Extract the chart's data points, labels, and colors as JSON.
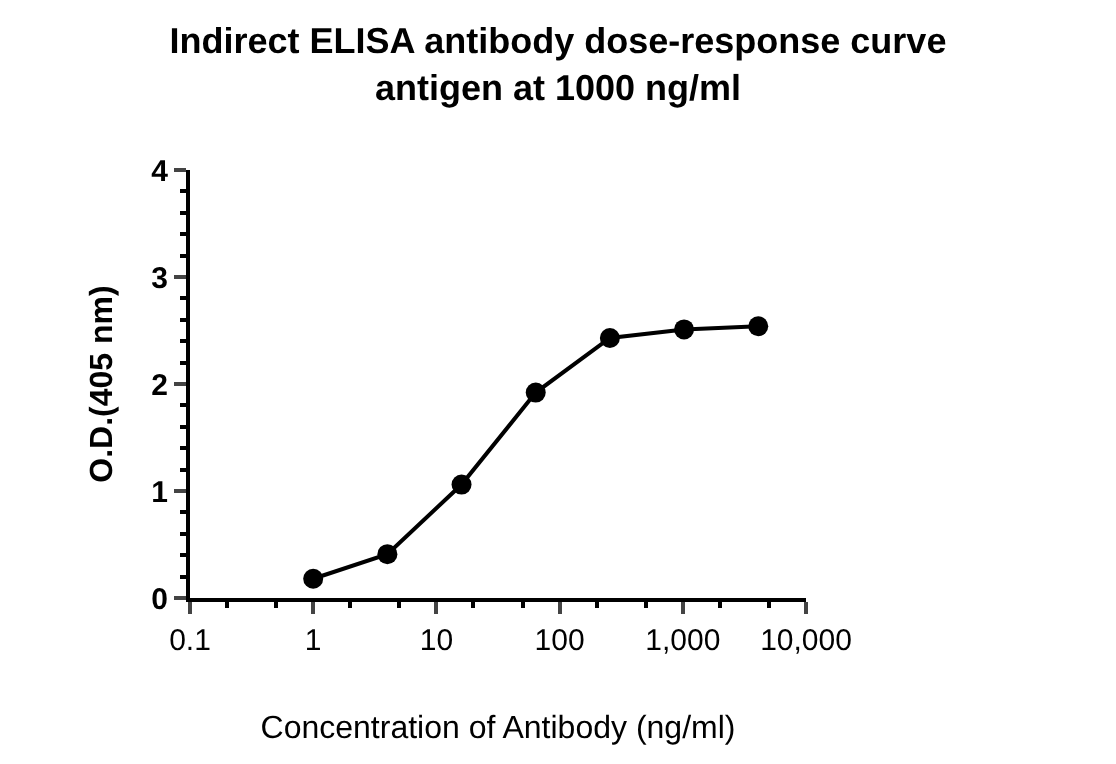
{
  "chart_data": {
    "type": "line",
    "title": "Indirect ELISA antibody dose-response curve\nantigen at 1000 ng/ml",
    "xlabel": "Concentration of Antibody (ng/ml)",
    "ylabel": "O.D.(405 nm)",
    "x": [
      1,
      4,
      16,
      64,
      256,
      1024,
      4096
    ],
    "series": [
      {
        "color": "#000000",
        "values": [
          0.18,
          0.41,
          1.06,
          1.92,
          2.43,
          2.51,
          2.54
        ]
      }
    ],
    "log": "x",
    "xlim": [
      0.1,
      10000
    ],
    "xticks": [
      0.1,
      1,
      10,
      100,
      {
        "value": 1000,
        "label": "1,000"
      },
      {
        "value": 10000,
        "label": "10,000"
      }
    ],
    "ylim": [
      0,
      4
    ],
    "yticks": [
      0,
      1,
      2,
      3,
      4
    ],
    "marker": "circle",
    "line_style": "solid"
  }
}
